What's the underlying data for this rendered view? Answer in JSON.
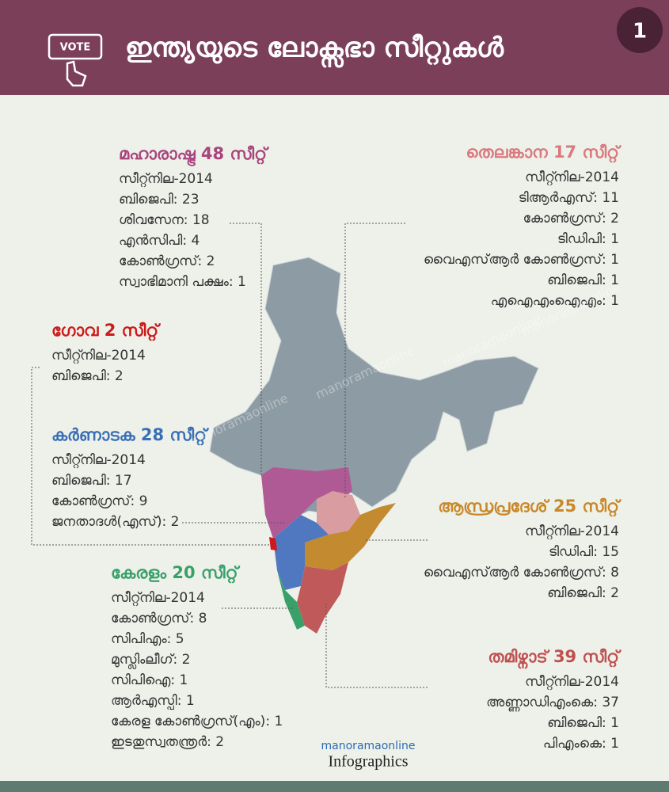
{
  "header": {
    "badge": "VOTE",
    "title": "ഇന്ത്യയുടെ ലോക്സഭാ സീറ്റുകൾ",
    "page": "1"
  },
  "states": [
    {
      "title": "മഹാരാഷ്ട്ര 48 സീറ്റ്",
      "lines": [
        "സീറ്റ്നില-2014",
        "ബിജെപി: 23",
        "ശിവസേന: 18",
        "എൻസിപി: 4",
        "കോൺഗ്രസ്: 2",
        "സ്വാഭിമാനി പക്ഷം: 1"
      ]
    },
    {
      "title": "തെലങ്കാന 17 സീറ്റ്",
      "lines": [
        "സീറ്റ്നില-2014",
        "ടിആർഎസ്: 11",
        "കോൺഗ്രസ്: 2",
        "ടിഡിപി: 1",
        "വൈഎസ്ആർ കോൺഗ്രസ്: 1",
        "ബിജെപി: 1",
        "എഐഎംഐഎം: 1"
      ]
    },
    {
      "title": "ഗോവ 2 സീറ്റ്",
      "lines": [
        "സീറ്റ്നില-2014",
        "ബിജെപി: 2"
      ]
    },
    {
      "title": "കർണാടക 28 സീറ്റ്",
      "lines": [
        "സീറ്റ്നില-2014",
        "ബിജെപി: 17",
        "കോൺഗ്രസ്: 9",
        "ജനതാദൾ(എസ്): 2"
      ]
    },
    {
      "title": "ആന്ധ്രപ്രദേശ് 25 സീറ്റ്",
      "lines": [
        "സീറ്റ്നില-2014",
        "ടിഡിപി: 15",
        "വൈഎസ്ആർ കോൺഗ്രസ്: 8",
        "ബിജെപി: 2"
      ]
    },
    {
      "title": "കേരളം 20 സീറ്റ്",
      "lines": [
        "സീറ്റ്നില-2014",
        "കോൺഗ്രസ്: 8",
        "സിപിഎം: 5",
        "മുസ്ലിംലീഗ്: 2",
        "സിപിഐ: 1",
        "ആർഎസ്പി: 1",
        "കേരള കോൺഗ്രസ്(എം): 1",
        "ഇടതുസ്വതന്ത്രർ: 2"
      ]
    },
    {
      "title": "തമിഴ്നാട് 39 സീറ്റ്",
      "lines": [
        "സീറ്റ്നില-2014",
        "അണ്ണാഡിഎംകെ: 37",
        "ബിജെപി: 1",
        "പിഎംകെ: 1"
      ]
    }
  ],
  "watermark": "manoramaonline",
  "logo": {
    "brand": "manoramaonline",
    "product": "Infographics"
  }
}
